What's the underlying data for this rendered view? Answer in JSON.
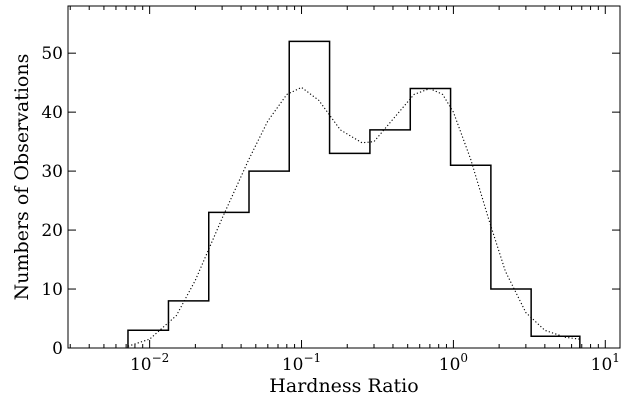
{
  "chart_data": {
    "type": "histogram",
    "xlabel": "Hardness Ratio",
    "ylabel": "Numbers of Observations",
    "xscale": "log",
    "xlim": [
      0.0029,
      12.5
    ],
    "ylim": [
      0,
      58
    ],
    "grid": false,
    "x_ticks": [
      {
        "value": 0.01,
        "base": "10",
        "exp": "−2"
      },
      {
        "value": 0.1,
        "base": "10",
        "exp": "−1"
      },
      {
        "value": 1,
        "base": "10",
        "exp": "0"
      },
      {
        "value": 10,
        "base": "10",
        "exp": "1"
      }
    ],
    "y_ticks": [
      0,
      10,
      20,
      30,
      40,
      50
    ],
    "bin_edges": [
      0.0072,
      0.0133,
      0.0245,
      0.0451,
      0.083,
      0.153,
      0.282,
      0.52,
      0.958,
      1.765,
      3.25,
      6.8
    ],
    "counts": [
      3,
      8,
      23,
      30,
      52,
      33,
      37,
      44,
      31,
      10,
      2
    ],
    "fit_curve": {
      "style": "dotted",
      "x": [
        0.0072,
        0.01,
        0.015,
        0.02,
        0.03,
        0.045,
        0.06,
        0.08,
        0.1,
        0.13,
        0.18,
        0.25,
        0.3,
        0.4,
        0.55,
        0.7,
        0.85,
        1.0,
        1.3,
        1.7,
        2.2,
        3.0,
        4.0,
        5.5,
        6.8
      ],
      "y": [
        0.3,
        1.5,
        5.5,
        11.5,
        22.0,
        32.0,
        38.5,
        43.0,
        44.2,
        42.0,
        37.0,
        34.8,
        35.0,
        38.8,
        43.0,
        44.0,
        43.0,
        40.0,
        32.0,
        22.0,
        13.0,
        6.0,
        3.0,
        1.8,
        1.5
      ]
    }
  }
}
